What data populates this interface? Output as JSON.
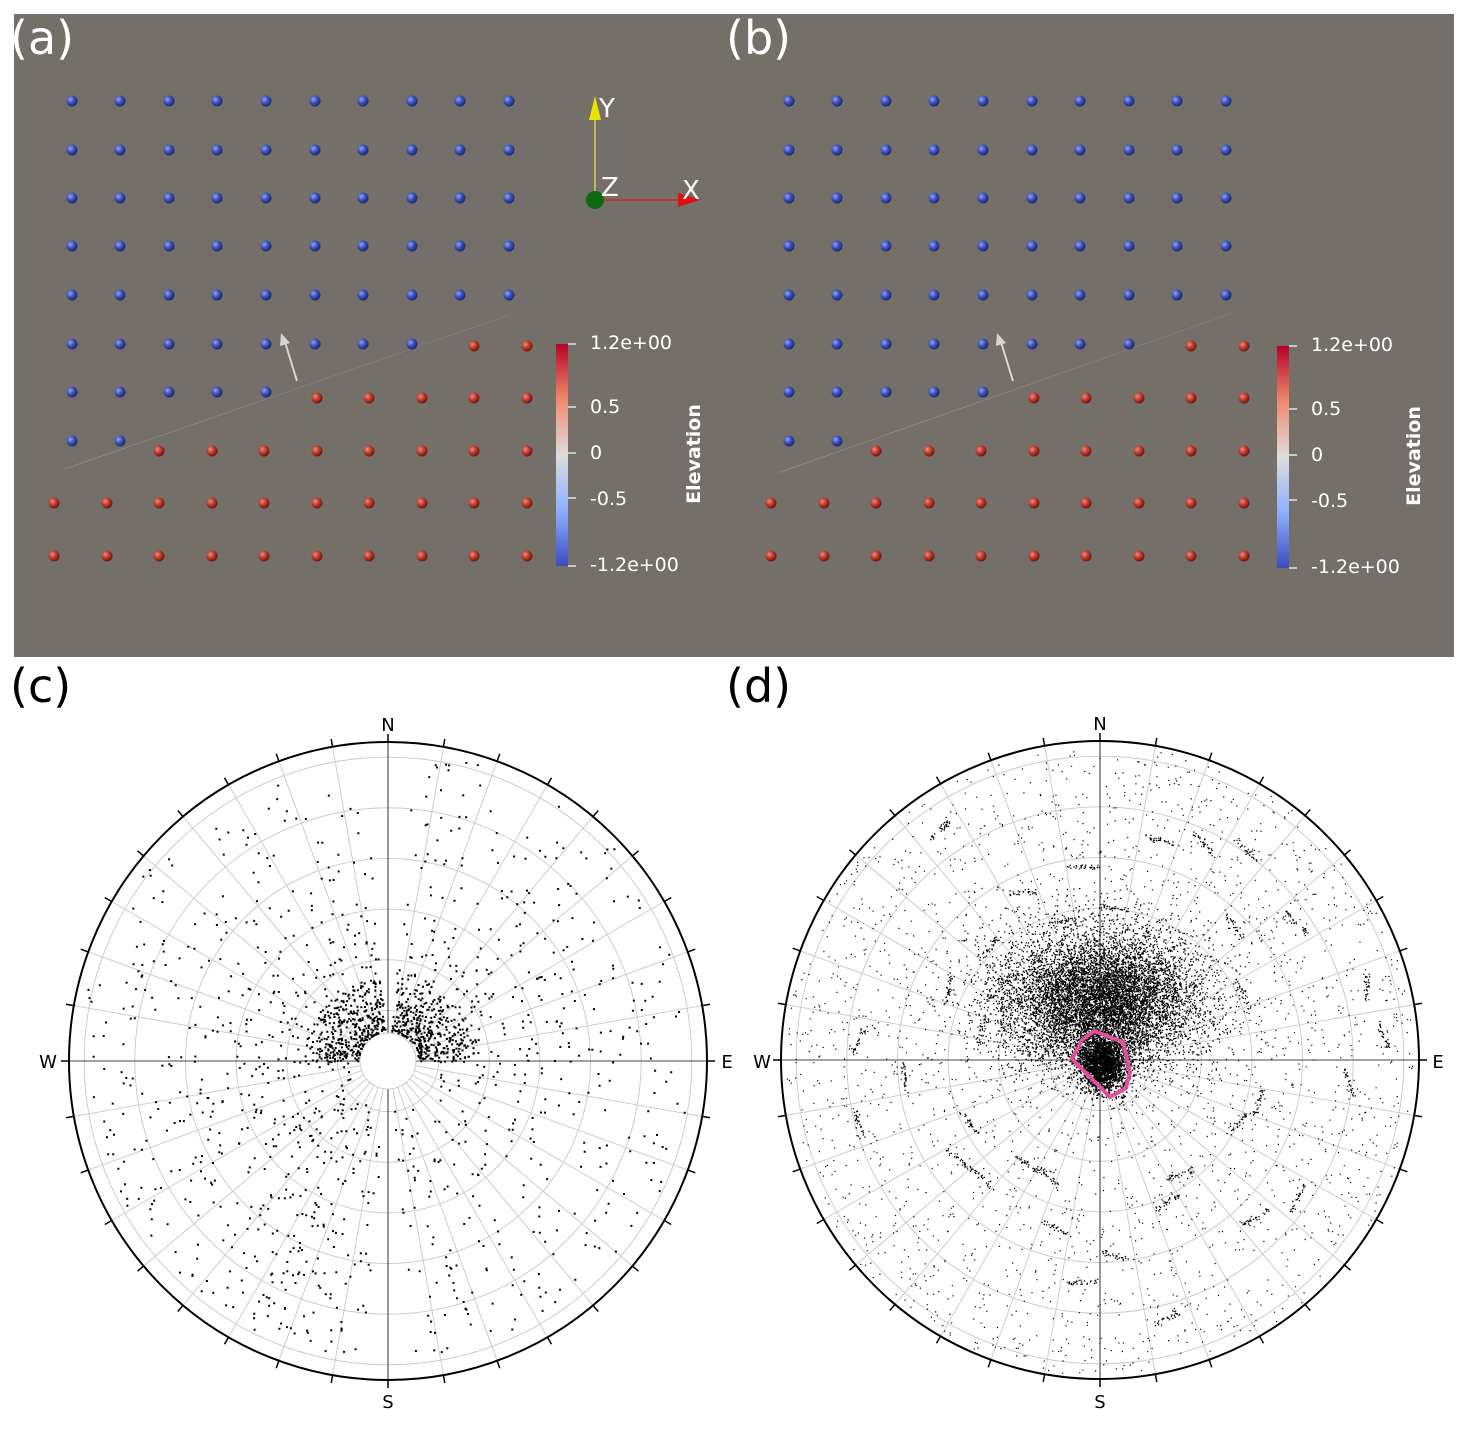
{
  "panels": {
    "a": {
      "label": "(a)"
    },
    "b": {
      "label": "(b)"
    },
    "c": {
      "label": "(c)"
    },
    "d": {
      "label": "(d)"
    }
  },
  "colorbar": {
    "title": "Elevation",
    "ticks": [
      "1.2e+00",
      "0.5",
      "0",
      "-0.5",
      "-1.2e+00"
    ],
    "low_color": "#3b4cc0",
    "high_color": "#b40426"
  },
  "orientation_axes": {
    "x": "X",
    "y": "Y",
    "z": "Z"
  },
  "compass": {
    "north": "N",
    "south": "S",
    "east": "E",
    "west": "W"
  },
  "colors": {
    "background": "#756f69",
    "blue_sphere": "#3a4fb8",
    "red_sphere": "#b8392b",
    "plane": "#a9a59d",
    "highlight": "#e0509a"
  }
}
